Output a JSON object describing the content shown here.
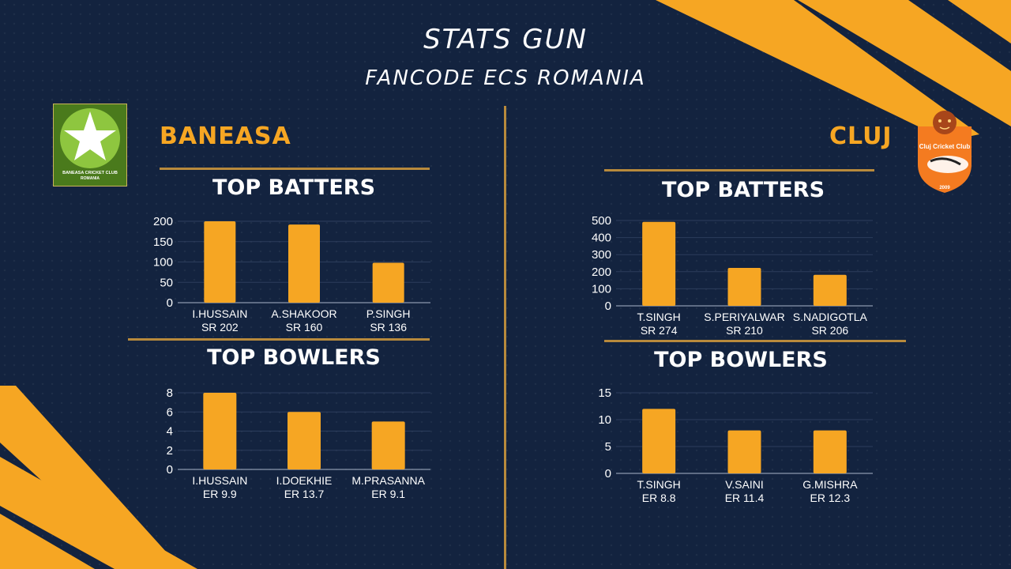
{
  "header": {
    "title": "STATS GUN",
    "subtitle": "FANCODE ECS ROMANIA"
  },
  "colors": {
    "background": "#13233f",
    "accent": "#f6a623",
    "bar": "#f6a623",
    "text": "#ffffff",
    "rule": "#b88a3c"
  },
  "teams": [
    {
      "name": "BANEASA",
      "logo_text": [
        "BANEASA CRICKET CLUB",
        "ROMANIA"
      ],
      "batting_heading": "TOP BATTERS",
      "bowling_heading": "TOP BOWLERS"
    },
    {
      "name": "CLUJ",
      "logo_text": [
        "Cluj Cricket Club",
        "2009"
      ],
      "batting_heading": "TOP BATTERS",
      "bowling_heading": "TOP BOWLERS"
    }
  ],
  "chart_data": [
    {
      "type": "bar",
      "title": "TOP BATTERS",
      "team": "BANEASA",
      "categories": [
        "I.HUSSAIN",
        "A.SHAKOOR",
        "P.SINGH"
      ],
      "sublabels": [
        "SR 202",
        "SR 160",
        "SR 136"
      ],
      "values": [
        200,
        192,
        98
      ],
      "ylim": [
        0,
        200
      ],
      "yticks": [
        0,
        50,
        100,
        150,
        200
      ],
      "grid": true
    },
    {
      "type": "bar",
      "title": "TOP BOWLERS",
      "team": "BANEASA",
      "categories": [
        "I.HUSSAIN",
        "I.DOEKHIE",
        "M.PRASANNA"
      ],
      "sublabels": [
        "ER 9.9",
        "ER 13.7",
        "ER 9.1"
      ],
      "values": [
        8,
        6,
        5
      ],
      "ylim": [
        0,
        8
      ],
      "yticks": [
        0,
        2,
        4,
        6,
        8
      ],
      "grid": true
    },
    {
      "type": "bar",
      "title": "TOP BATTERS",
      "team": "CLUJ",
      "categories": [
        "T.SINGH",
        "S.PERIYALWAR",
        "S.NADIGOTLA"
      ],
      "sublabels": [
        "SR 274",
        "SR 210",
        "SR 206"
      ],
      "values": [
        492,
        222,
        182
      ],
      "ylim": [
        0,
        500
      ],
      "yticks": [
        0,
        100,
        200,
        300,
        400,
        500
      ],
      "grid": true
    },
    {
      "type": "bar",
      "title": "TOP BOWLERS",
      "team": "CLUJ",
      "categories": [
        "T.SINGH",
        "V.SAINI",
        "G.MISHRA"
      ],
      "sublabels": [
        "ER 8.8",
        "ER 11.4",
        "ER 12.3"
      ],
      "values": [
        12,
        8,
        8
      ],
      "ylim": [
        0,
        15
      ],
      "yticks": [
        0,
        5,
        10,
        15
      ],
      "grid": true
    }
  ]
}
